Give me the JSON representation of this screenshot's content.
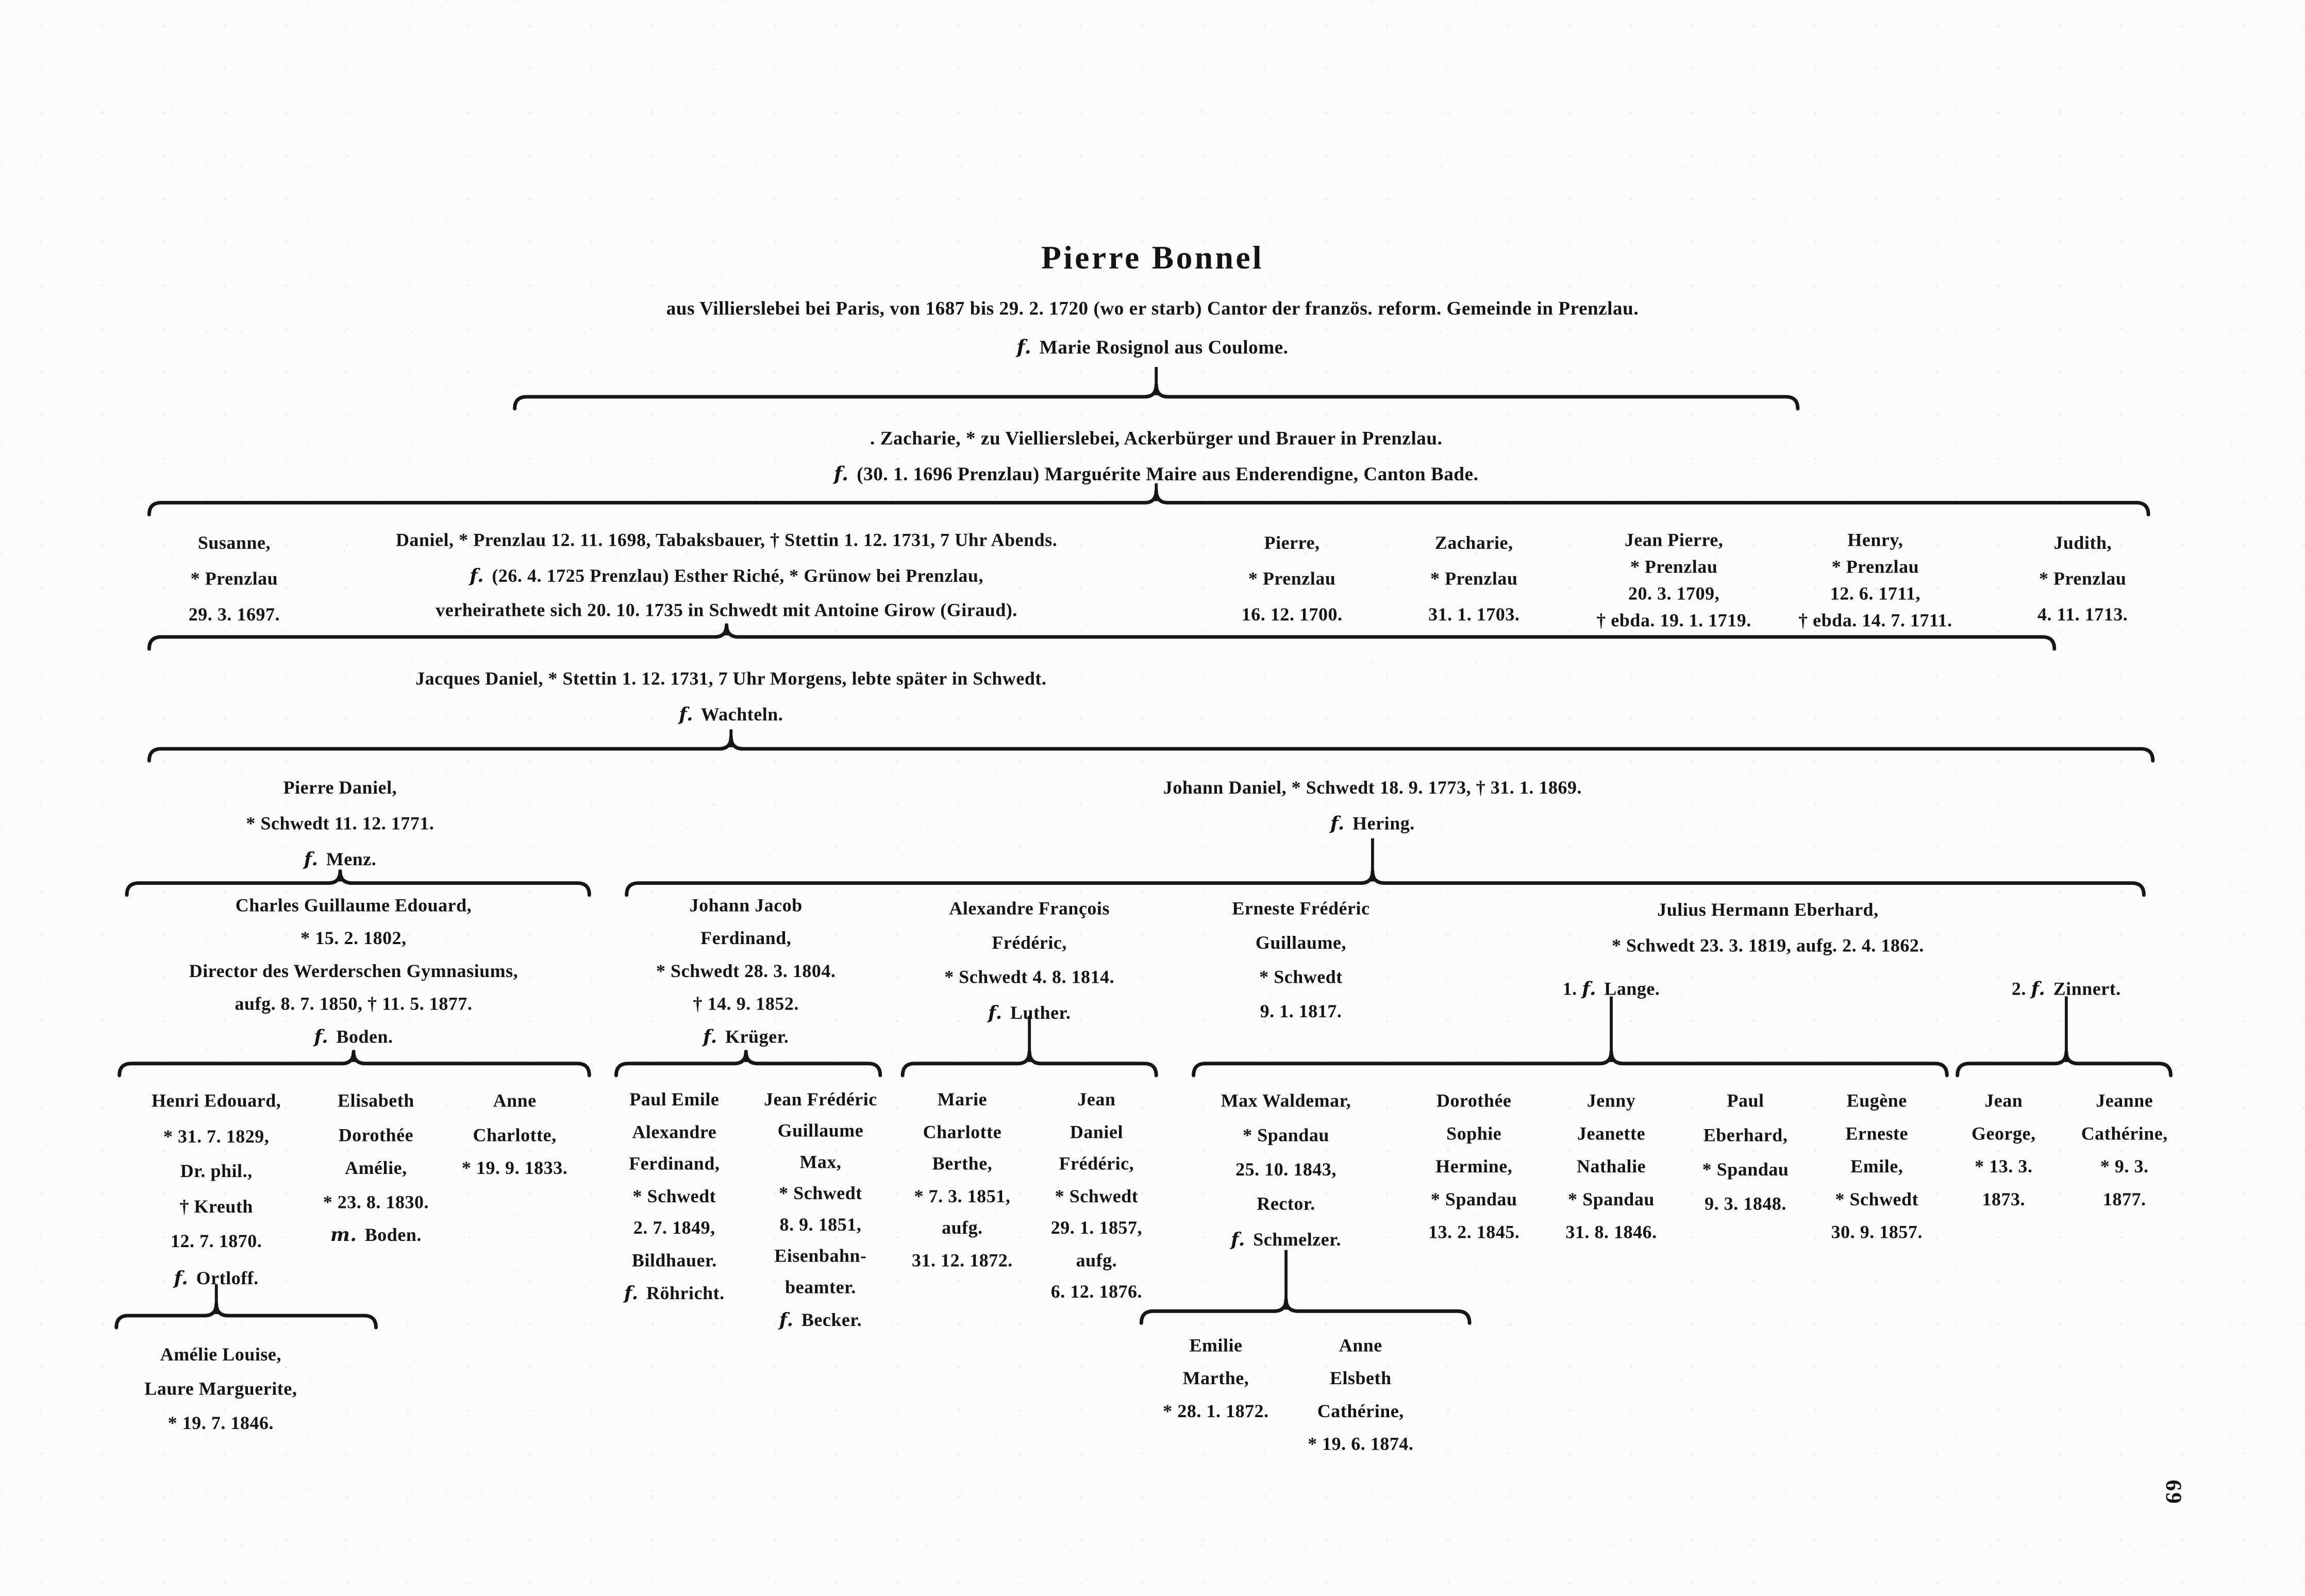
{
  "page": {
    "number": "69"
  },
  "title_block": {
    "name": "Pierre Bonnel",
    "line1": "aus Villierslebei bei Paris, von 1687 bis 29. 2. 1720 (wo er starb) Cantor der französ. reform. Gemeinde in Prenzlau.",
    "line2": "f. Marie Rosignol aus Coulome."
  },
  "persons": [
    {
      "id": "zacharie_parent",
      "lines": [
        ". Zacharie, * zu Viellierslebei, Ackerbürger und Brauer in Prenzlau.",
        "f. (30. 1. 1696 Prenzlau) Marguérite Maire aus Enderendigne, Canton Bade."
      ]
    },
    {
      "id": "susanne",
      "lines": [
        "Susanne,",
        "* Prenzlau",
        "29. 3. 1697."
      ]
    },
    {
      "id": "daniel",
      "lines": [
        "Daniel, * Prenzlau 12. 11. 1698, Tabaksbauer, † Stettin 1. 12. 1731, 7 Uhr Abends.",
        "f. (26. 4. 1725 Prenzlau) Esther Riché, * Grünow bei Prenzlau,",
        "verheirathete sich 20. 10. 1735 in Schwedt mit Antoine Girow (Giraud)."
      ]
    },
    {
      "id": "pierre",
      "lines": [
        "Pierre,",
        "* Prenzlau",
        "16. 12. 1700."
      ]
    },
    {
      "id": "zacharie",
      "lines": [
        "Zacharie,",
        "* Prenzlau",
        "31. 1. 1703."
      ]
    },
    {
      "id": "jean_pierre",
      "lines": [
        "Jean Pierre,",
        "* Prenzlau",
        "20. 3. 1709,",
        "† ebda. 19. 1. 1719."
      ]
    },
    {
      "id": "henry",
      "lines": [
        "Henry,",
        "* Prenzlau",
        "12. 6. 1711,",
        "† ebda. 14. 7. 1711."
      ]
    },
    {
      "id": "judith",
      "lines": [
        "Judith,",
        "* Prenzlau",
        "4. 11. 1713."
      ]
    },
    {
      "id": "jacques_daniel",
      "lines": [
        "Jacques Daniel, * Stettin 1. 12. 1731, 7 Uhr Morgens, lebte später in Schwedt.",
        "f. Wachteln."
      ]
    },
    {
      "id": "pierre_daniel",
      "lines": [
        "Pierre Daniel,",
        "* Schwedt 11. 12. 1771.",
        "f. Menz."
      ]
    },
    {
      "id": "johann_daniel",
      "lines": [
        "Johann Daniel, * Schwedt 18. 9. 1773, † 31. 1. 1869.",
        "f. Hering."
      ]
    },
    {
      "id": "charles",
      "lines": [
        "Charles Guillaume Edouard,",
        "* 15. 2. 1802,",
        "Director des Werderschen Gymnasiums,",
        "aufg. 8. 7. 1850, † 11. 5. 1877.",
        "f. Boden."
      ]
    },
    {
      "id": "johann_jacob",
      "lines": [
        "Johann Jacob",
        "Ferdinand,",
        "* Schwedt 28. 3. 1804.",
        "† 14. 9. 1852.",
        "f. Krüger."
      ]
    },
    {
      "id": "alexandre",
      "lines": [
        "Alexandre François",
        "Frédéric,",
        "* Schwedt 4. 8. 1814.",
        "f. Luther."
      ]
    },
    {
      "id": "erneste",
      "lines": [
        "Erneste Frédéric",
        "Guillaume,",
        "* Schwedt",
        "9. 1. 1817."
      ]
    },
    {
      "id": "julius",
      "lines": [
        "Julius Hermann Eberhard,",
        "* Schwedt 23. 3. 1819, aufg. 2. 4. 1862."
      ]
    },
    {
      "id": "lange",
      "lines": [
        "1. f. Lange."
      ]
    },
    {
      "id": "zinnert",
      "lines": [
        "2. f. Zinnert."
      ]
    },
    {
      "id": "henri",
      "lines": [
        "Henri Edouard,",
        "* 31. 7. 1829,",
        "Dr. phil.,",
        "† Kreuth",
        "12. 7. 1870.",
        "f. Ortloff."
      ]
    },
    {
      "id": "elisabeth",
      "lines": [
        "Elisabeth",
        "Dorothée",
        "Amélie,",
        "* 23. 8. 1830.",
        "m. Boden."
      ]
    },
    {
      "id": "anne_charlotte",
      "lines": [
        "Anne",
        "Charlotte,",
        "* 19. 9. 1833."
      ]
    },
    {
      "id": "paul_emile",
      "lines": [
        "Paul Emile",
        "Alexandre",
        "Ferdinand,",
        "* Schwedt",
        "2. 7. 1849,",
        "Bildhauer.",
        "f. Röhricht."
      ]
    },
    {
      "id": "jean_frederic_max",
      "lines": [
        "Jean Frédéric",
        "Guillaume",
        "Max,",
        "* Schwedt",
        "8. 9. 1851,",
        "Eisenbahn-",
        "beamter.",
        "f. Becker."
      ]
    },
    {
      "id": "marie_charlotte",
      "lines": [
        "Marie",
        "Charlotte",
        "Berthe,",
        "* 7. 3. 1851,",
        "aufg.",
        "31. 12. 1872."
      ]
    },
    {
      "id": "jean_daniel",
      "lines": [
        "Jean",
        "Daniel",
        "Frédéric,",
        "* Schwedt",
        "29. 1. 1857,",
        "aufg.",
        "6. 12. 1876."
      ]
    },
    {
      "id": "max_waldemar",
      "lines": [
        "Max Waldemar,",
        "* Spandau",
        "25. 10. 1843,",
        "Rector.",
        "f. Schmelzer."
      ]
    },
    {
      "id": "dorothee",
      "lines": [
        "Dorothée",
        "Sophie",
        "Hermine,",
        "* Spandau",
        "13. 2. 1845."
      ]
    },
    {
      "id": "jenny",
      "lines": [
        "Jenny",
        "Jeanette",
        "Nathalie",
        "* Spandau",
        "31. 8. 1846."
      ]
    },
    {
      "id": "paul_eberhard",
      "lines": [
        "Paul",
        "Eberhard,",
        "* Spandau",
        "9. 3. 1848."
      ]
    },
    {
      "id": "eugene",
      "lines": [
        "Eugène",
        "Erneste",
        "Emile,",
        "* Schwedt",
        "30. 9. 1857."
      ]
    },
    {
      "id": "jean_george",
      "lines": [
        "Jean",
        "George,",
        "* 13. 3.",
        "1873."
      ]
    },
    {
      "id": "jeanne_catherine",
      "lines": [
        "Jeanne",
        "Cathérine,",
        "* 9. 3.",
        "1877."
      ]
    },
    {
      "id": "amelie_louise",
      "lines": [
        "Amélie Louise,",
        "Laure Marguerite,",
        "* 19. 7. 1846."
      ]
    },
    {
      "id": "emilie_marthe",
      "lines": [
        "Emilie",
        "Marthe,",
        "* 28. 1. 1872."
      ]
    },
    {
      "id": "anne_elsbeth",
      "lines": [
        "Anne",
        "Elsbeth",
        "Cathérine,",
        "* 19. 6. 1874."
      ]
    }
  ]
}
